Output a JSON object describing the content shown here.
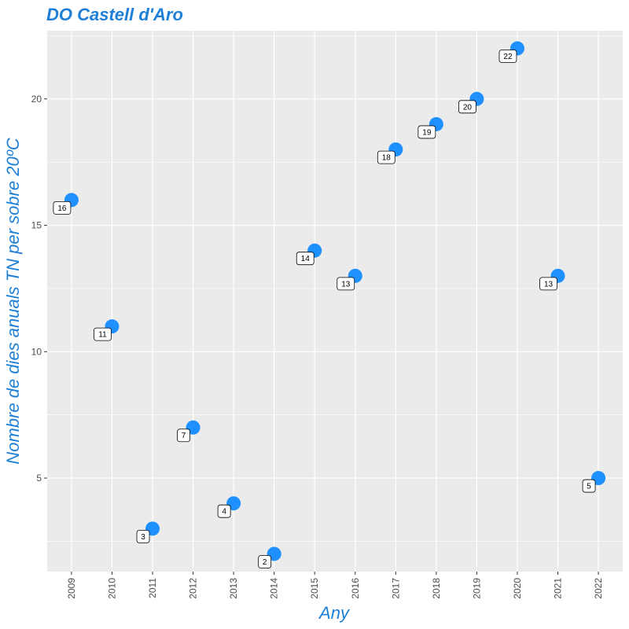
{
  "chart_data": {
    "type": "scatter",
    "title": "DO Castell d'Aro",
    "xlabel": "Any",
    "ylabel": "Nombre de dies anuals TN per sobre 20ºC",
    "x": [
      "2009",
      "2010",
      "2011",
      "2012",
      "2013",
      "2014",
      "2015",
      "2016",
      "2017",
      "2018",
      "2019",
      "2020",
      "2021",
      "2022"
    ],
    "values": [
      16,
      11,
      3,
      7,
      4,
      2,
      14,
      13,
      18,
      19,
      20,
      22,
      13,
      5
    ],
    "y_ticks": [
      "5",
      "10",
      "15",
      "20"
    ],
    "ylim": [
      1.3,
      22.7
    ],
    "grid": true,
    "point_color": "#1e90ff",
    "panel_background": "#ebebeb",
    "title_color": "#1e7fd6"
  }
}
